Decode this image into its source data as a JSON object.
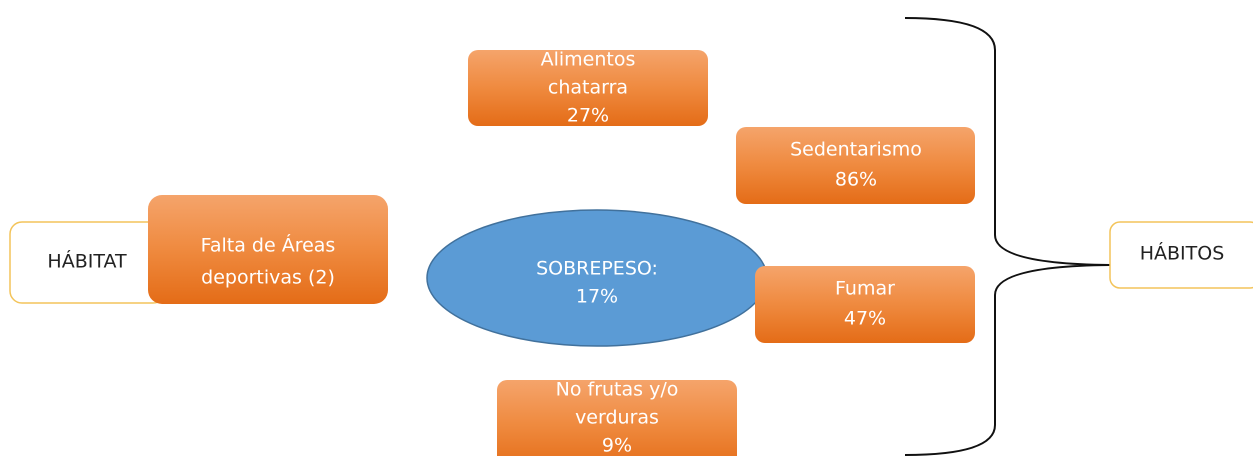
{
  "nodes": [
    {
      "lines": [
        "HÁBITAT"
      ]
    },
    {
      "lines": [
        "Falta de Áreas",
        "deportivas (2)"
      ]
    },
    {
      "lines": [
        "SOBREPESO:",
        "17%"
      ]
    },
    {
      "lines": [
        "Alimentos",
        "chatarra",
        "27%"
      ]
    },
    {
      "lines": [
        "Sedentarismo",
        "86%"
      ]
    },
    {
      "lines": [
        "Fumar",
        "47%"
      ]
    },
    {
      "lines": [
        "No frutas y/o",
        "verduras",
        "9%"
      ]
    },
    {
      "lines": [
        "HÁBITOS"
      ]
    }
  ]
}
